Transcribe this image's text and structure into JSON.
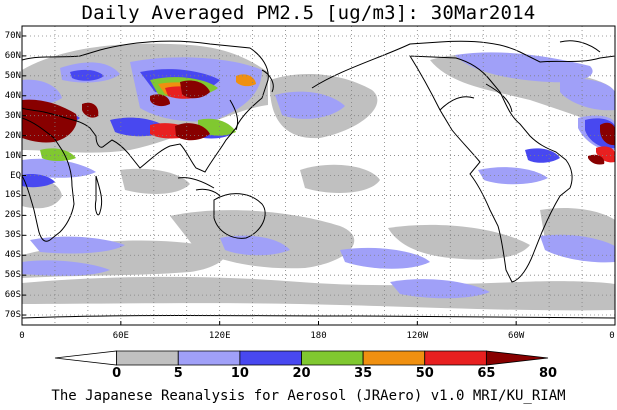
{
  "title": "Daily Averaged PM2.5 [ug/m3]: 30Mar2014",
  "footer": "The Japanese Reanalysis for Aerosol (JRAero) v1.0 MRI/KU_RIAM",
  "map": {
    "projection": "equirectangular",
    "lon_range": [
      0,
      360
    ],
    "lat_range": [
      -75,
      75
    ],
    "lat_ticks": [
      "70N",
      "60N",
      "50N",
      "40N",
      "30N",
      "20N",
      "10N",
      "EQ",
      "10S",
      "20S",
      "30S",
      "40S",
      "50S",
      "60S",
      "70S"
    ],
    "lon_ticks": [
      "0",
      "60E",
      "120E",
      "180",
      "120W",
      "60W",
      "0"
    ]
  },
  "colorbar": {
    "labels": [
      "0",
      "5",
      "10",
      "20",
      "35",
      "50",
      "65",
      "80"
    ],
    "colors": [
      "#ffffff",
      "#c0c0c0",
      "#a0a0f8",
      "#4848f0",
      "#80c830",
      "#f09010",
      "#e82020",
      "#880000"
    ]
  }
}
